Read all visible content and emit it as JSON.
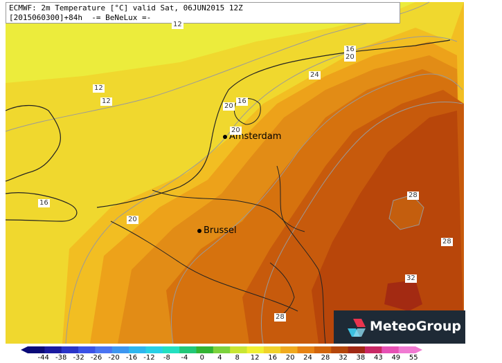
{
  "header": {
    "line1": "ECMWF: 2m Temperature [°C] valid Sat, 06JUN2015 12Z",
    "line2": "[2015060300]+84h  -= BeNeLux =-"
  },
  "cities": [
    {
      "name": "Amsterdam"
    },
    {
      "name": "Brussel"
    }
  ],
  "contour_labels": [
    "12",
    "12",
    "12",
    "16",
    "20",
    "20",
    "24",
    "16",
    "20",
    "20",
    "16",
    "20",
    "28",
    "28",
    "32",
    "28"
  ],
  "legend": {
    "ticks": [
      "-44",
      "-38",
      "-32",
      "-26",
      "-20",
      "-16",
      "-12",
      "-8",
      "-4",
      "0",
      "4",
      "8",
      "12",
      "16",
      "20",
      "24",
      "28",
      "32",
      "38",
      "43",
      "49",
      "55"
    ],
    "colors": [
      "#0a0a78",
      "#1a1aa0",
      "#2a34c8",
      "#3a52e6",
      "#4a74f2",
      "#3c96f0",
      "#2eb6ee",
      "#28d0e6",
      "#22e0c0",
      "#22c878",
      "#32b432",
      "#7cd23c",
      "#c8e632",
      "#f0f032",
      "#f0d22a",
      "#f0aa1e",
      "#e68214",
      "#d2640a",
      "#b4460a",
      "#a02814",
      "#c82864",
      "#e650b4",
      "#f07ad2"
    ]
  },
  "logo": {
    "text": "MeteoGroup"
  }
}
